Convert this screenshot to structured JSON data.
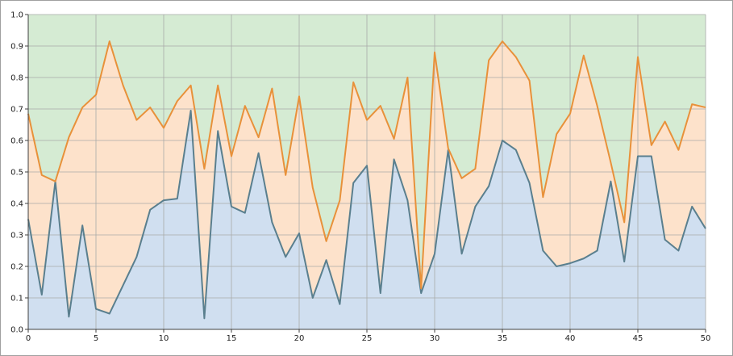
{
  "chart_data": {
    "type": "area",
    "stacked": false,
    "xlim": [
      0,
      50
    ],
    "ylim": [
      0,
      1
    ],
    "x_ticks": [
      "0",
      "5",
      "10",
      "15",
      "20",
      "25",
      "30",
      "35",
      "40",
      "45",
      "50"
    ],
    "y_ticks": [
      "0.0",
      "0.1",
      "0.2",
      "0.3",
      "0.4",
      "0.5",
      "0.6",
      "0.7",
      "0.8",
      "0.9",
      "1.0"
    ],
    "grid": true,
    "x": [
      0,
      1,
      2,
      3,
      4,
      5,
      6,
      7,
      8,
      9,
      10,
      11,
      12,
      13,
      14,
      15,
      16,
      17,
      18,
      19,
      20,
      21,
      22,
      23,
      24,
      25,
      26,
      27,
      28,
      29,
      30,
      31,
      32,
      33,
      34,
      35,
      36,
      37,
      38,
      39,
      40,
      41,
      42,
      43,
      44,
      45,
      46,
      47,
      48,
      49,
      50
    ],
    "series": [
      {
        "color": "#5a7f8e",
        "fill": "#d0dff0",
        "values": [
          0.35,
          0.11,
          0.47,
          0.04,
          0.33,
          0.065,
          0.05,
          0.14,
          0.23,
          0.38,
          0.41,
          0.415,
          0.695,
          0.035,
          0.63,
          0.39,
          0.37,
          0.56,
          0.34,
          0.23,
          0.305,
          0.1,
          0.22,
          0.08,
          0.465,
          0.52,
          0.115,
          0.54,
          0.41,
          0.115,
          0.24,
          0.57,
          0.24,
          0.39,
          0.455,
          0.6,
          0.57,
          0.465,
          0.25,
          0.2,
          0.21,
          0.225,
          0.25,
          0.47,
          0.215,
          0.55,
          0.55,
          0.285,
          0.25,
          0.39,
          0.32
        ]
      },
      {
        "color": "#e8913a",
        "fill": "#fde2cb",
        "values": [
          0.685,
          0.49,
          0.47,
          0.61,
          0.705,
          0.745,
          0.915,
          0.775,
          0.665,
          0.705,
          0.64,
          0.725,
          0.775,
          0.51,
          0.775,
          0.55,
          0.71,
          0.61,
          0.765,
          0.49,
          0.74,
          0.45,
          0.28,
          0.41,
          0.785,
          0.665,
          0.71,
          0.605,
          0.8,
          0.13,
          0.88,
          0.575,
          0.48,
          0.51,
          0.855,
          0.915,
          0.865,
          0.79,
          0.42,
          0.62,
          0.685,
          0.87,
          0.71,
          0.53,
          0.34,
          0.865,
          0.585,
          0.66,
          0.57,
          0.715,
          0.705
        ]
      },
      {
        "fill": "#d5ebd3",
        "values": [
          1,
          1,
          1,
          1,
          1,
          1,
          1,
          1,
          1,
          1,
          1,
          1,
          1,
          1,
          1,
          1,
          1,
          1,
          1,
          1,
          1,
          1,
          1,
          1,
          1,
          1,
          1,
          1,
          1,
          1,
          1,
          1,
          1,
          1,
          1,
          1,
          1,
          1,
          1,
          1,
          1,
          1,
          1,
          1,
          1,
          1,
          1,
          1,
          1,
          1,
          1
        ]
      }
    ]
  }
}
